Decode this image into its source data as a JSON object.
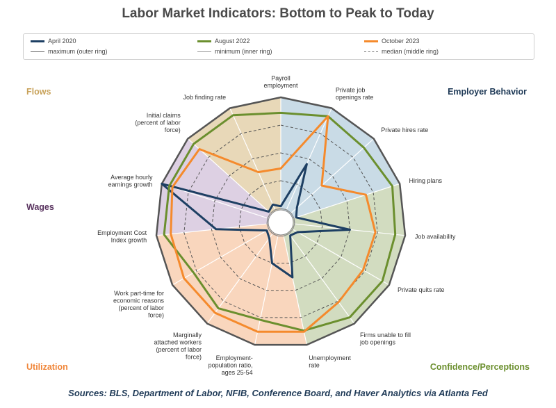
{
  "title": "Labor Market Indicators: Bottom to Peak to Today",
  "source": "Sources: BLS, Department of Labor, NFIB, Conference Board, and Haver Analytics via Atlanta Fed",
  "legend": [
    {
      "key": "apr2020",
      "label": "April 2020",
      "color": "#1d3f63",
      "style": "solid"
    },
    {
      "key": "aug2022",
      "label": "August 2022",
      "color": "#6b8f2e",
      "style": "solid"
    },
    {
      "key": "oct2023",
      "label": "October 2023",
      "color": "#f58a2c",
      "style": "solid"
    },
    {
      "key": "max",
      "label": "maximum (outer ring)",
      "color": "#666666",
      "style": "solid"
    },
    {
      "key": "min",
      "label": "minimum (inner ring)",
      "color": "#999999",
      "style": "solid"
    },
    {
      "key": "median",
      "label": "median (middle ring)",
      "color": "#777777",
      "style": "dashed"
    }
  ],
  "groups": [
    {
      "name": "Flows",
      "color": "#c8a25a"
    },
    {
      "name": "Employer Behavior",
      "color": "#1f3a57"
    },
    {
      "name": "Wages",
      "color": "#5a3460"
    },
    {
      "name": "Utilization",
      "color": "#f0863a"
    },
    {
      "name": "Confidence/Perceptions",
      "color": "#6b8f2e"
    }
  ],
  "chart_data": {
    "type": "radar",
    "axes": [
      {
        "label": [
          "Payroll",
          "employment"
        ]
      },
      {
        "label": [
          "Private job",
          "openings rate"
        ]
      },
      {
        "label": [
          "Private hires rate"
        ]
      },
      {
        "label": [
          "Hiring plans"
        ]
      },
      {
        "label": [
          "Job availability"
        ]
      },
      {
        "label": [
          "Private quits rate"
        ]
      },
      {
        "label": [
          "Firms unable to fill",
          "job openings"
        ]
      },
      {
        "label": [
          "Unemployment",
          "rate"
        ]
      },
      {
        "label": [
          "Employment-",
          "population ratio,",
          "ages 25-54"
        ]
      },
      {
        "label": [
          "Marginally",
          "attached workers",
          "(percent of labor",
          "force)"
        ]
      },
      {
        "label": [
          "Work part-time for",
          "economic reasons",
          "(percent of labor",
          "force)"
        ]
      },
      {
        "label": [
          "Employment Cost",
          "Index growth"
        ]
      },
      {
        "label": [
          "Average hourly",
          "earnings growth"
        ]
      },
      {
        "label": [
          "Initial claims",
          "(percent of labor",
          "force)"
        ]
      },
      {
        "label": [
          "Job finding rate"
        ]
      }
    ],
    "sectors": [
      {
        "group": "Employer Behavior",
        "fill": "#c9dbe6",
        "axes": [
          0,
          3
        ]
      },
      {
        "group": "Confidence/Perceptions",
        "fill": "#d2dcc0",
        "axes": [
          3,
          7
        ]
      },
      {
        "group": "Utilization",
        "fill": "#f9d6bd",
        "axes": [
          7,
          11
        ]
      },
      {
        "group": "Wages",
        "fill": "#ddd0e3",
        "axes": [
          11,
          13
        ]
      },
      {
        "group": "Flows",
        "fill": "#e8d8b8",
        "axes": [
          13,
          15
        ]
      }
    ],
    "rings": {
      "min": 0,
      "median": 0.5,
      "max": 1
    },
    "series": [
      {
        "name": "April 2020",
        "color": "#1d3f63",
        "values": [
          0.02,
          0.45,
          0.07,
          0.02,
          0.5,
          0.05,
          0.02,
          0.38,
          0.25,
          0.05,
          0.02,
          0.46,
          1.0,
          0.02,
          0.05
        ]
      },
      {
        "name": "August 2022",
        "color": "#6b8f2e",
        "values": [
          0.86,
          0.92,
          0.88,
          0.93,
          0.91,
          0.93,
          0.93,
          0.87,
          0.77,
          0.83,
          0.78,
          0.93,
          0.93,
          0.93,
          0.93
        ]
      },
      {
        "name": "October 2023",
        "color": "#f58a2c",
        "values": [
          0.36,
          0.92,
          0.37,
          0.68,
          0.73,
          0.73,
          0.76,
          0.88,
          0.88,
          0.88,
          0.88,
          0.87,
          0.9,
          0.86,
          0.37
        ]
      }
    ]
  }
}
